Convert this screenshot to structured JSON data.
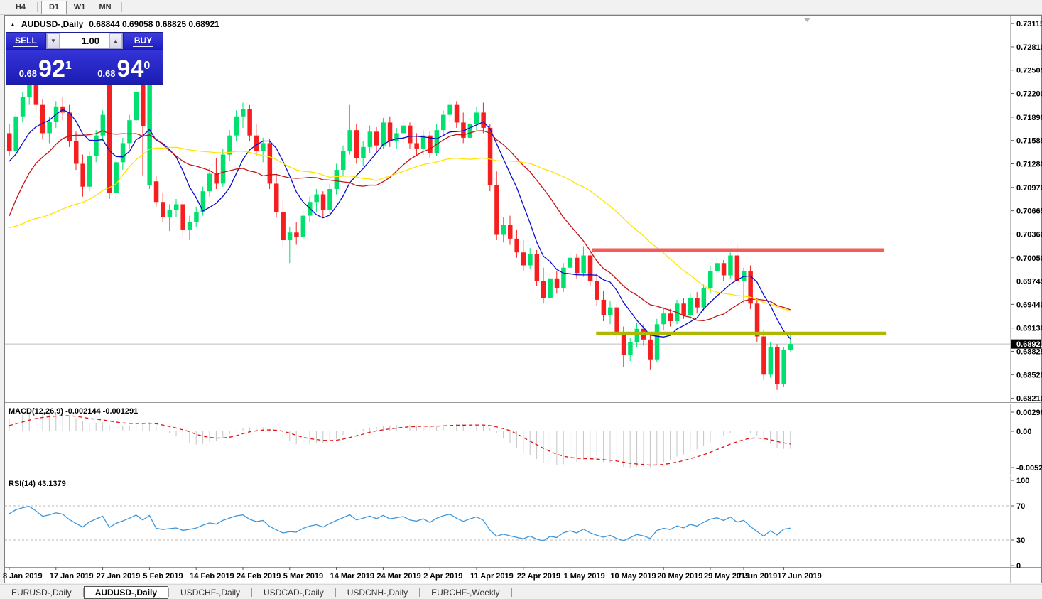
{
  "toolbar": {
    "periods": [
      "H4",
      "D1",
      "W1",
      "MN"
    ],
    "active_period": "D1"
  },
  "chart_window": {
    "title": {
      "collapse_icon": "▲",
      "symbol": "AUDUSD-,Daily",
      "ohlc": "0.68844 0.69058 0.68825 0.68921"
    },
    "trade_panel": {
      "sell_label": "SELL",
      "buy_label": "BUY",
      "volume": "1.00",
      "spin_down_icon": "▼",
      "spin_up_icon": "▲",
      "sell_price": {
        "base": "0.68",
        "big": "92",
        "sup": "1"
      },
      "buy_price": {
        "base": "0.68",
        "big": "94",
        "sup": "0"
      }
    }
  },
  "tabs": {
    "items": [
      "EURUSD-,Daily",
      "AUDUSD-,Daily",
      "USDCHF-,Daily",
      "USDCAD-,Daily",
      "USDCNH-,Daily",
      "EURCHF-,Weekly"
    ],
    "active_index": 1
  },
  "chart_data": {
    "type": "candlestick",
    "symbol": "AUDUSD",
    "timeframe": "Daily",
    "ylim": [
      0.6816,
      0.732
    ],
    "grid": false,
    "current_price": "0.68921",
    "y_ticks": [
      "0.73115",
      "0.72810",
      "0.72505",
      "0.72200",
      "0.71890",
      "0.71585",
      "0.71280",
      "0.70970",
      "0.70665",
      "0.70360",
      "0.70050",
      "0.69745",
      "0.69440",
      "0.69130",
      "0.68825",
      "0.68520",
      "0.68210"
    ],
    "x_labels": [
      {
        "i": 0,
        "label": "8 Jan 2019"
      },
      {
        "i": 7,
        "label": "17 Jan 2019"
      },
      {
        "i": 14,
        "label": "27 Jan 2019"
      },
      {
        "i": 21,
        "label": "5 Feb 2019"
      },
      {
        "i": 28,
        "label": "14 Feb 2019"
      },
      {
        "i": 35,
        "label": "24 Feb 2019"
      },
      {
        "i": 42,
        "label": "5 Mar 2019"
      },
      {
        "i": 49,
        "label": "14 Mar 2019"
      },
      {
        "i": 56,
        "label": "24 Mar 2019"
      },
      {
        "i": 63,
        "label": "2 Apr 2019"
      },
      {
        "i": 70,
        "label": "11 Apr 2019"
      },
      {
        "i": 77,
        "label": "22 Apr 2019"
      },
      {
        "i": 84,
        "label": "1 May 2019"
      },
      {
        "i": 91,
        "label": "10 May 2019"
      },
      {
        "i": 98,
        "label": "20 May 2019"
      },
      {
        "i": 105,
        "label": "29 May 2019"
      },
      {
        "i": 110,
        "label": "7 Jun 2019"
      },
      {
        "i": 116,
        "label": "17 Jun 2019"
      }
    ],
    "colors": {
      "bull": "#00E06E",
      "bear": "#F51F1F",
      "background": "#FFFFFF",
      "current_price_line": "#BDBDBD",
      "axis_text": "#000000"
    },
    "moving_averages": [
      {
        "period": 8,
        "color": "#0A0AC8"
      },
      {
        "period": 17,
        "color": "#C41414"
      },
      {
        "period": 34,
        "color": "#FFE400"
      }
    ],
    "levels": [
      {
        "price": 0.7015,
        "color": "#F45B5B",
        "from_i": 87.3,
        "to_i": 131.0,
        "thickness": 5
      },
      {
        "price": 0.6906,
        "color": "#AFB800",
        "from_i": 87.9,
        "to_i": 131.4,
        "thickness": 5
      }
    ],
    "macd": {
      "label": "MACD(12,26,9)",
      "values": "-0.002144 -0.001291",
      "fast": 12,
      "slow": 26,
      "signal": 9,
      "scale_ticks": [
        "0.002984",
        "0.00",
        "-0.005256"
      ],
      "histogram_color": "#C4C4C4",
      "signal_color": "#E01010"
    },
    "rsi": {
      "label": "RSI(14)",
      "value": "43.1379",
      "period": 14,
      "scale_ticks": [
        "100",
        "70",
        "30",
        "0"
      ],
      "level_lines": [
        70,
        30
      ],
      "line_color": "#3C96DC"
    },
    "shift_marker_i": 119.5,
    "prehistory_closes": [
      0.7135,
      0.7128,
      0.714,
      0.7132,
      0.712,
      0.7112,
      0.7125,
      0.7118,
      0.7105,
      0.7098,
      0.711,
      0.7102,
      0.7088,
      0.7075,
      0.706,
      0.7045,
      0.703,
      0.7015,
      0.7,
      0.699,
      0.6975,
      0.696,
      0.698,
      0.674,
      0.683,
      0.69,
      0.695,
      0.699,
      0.703,
      0.706,
      0.704,
      0.707,
      0.7095,
      0.7115,
      0.71,
      0.7125,
      0.714,
      0.7132,
      0.715,
      0.7142
    ],
    "candles": [
      [
        0.7168,
        0.718,
        0.7138,
        0.7145
      ],
      [
        0.7145,
        0.7196,
        0.714,
        0.719
      ],
      [
        0.719,
        0.7222,
        0.7182,
        0.7215
      ],
      [
        0.7215,
        0.724,
        0.7205,
        0.7232
      ],
      [
        0.7232,
        0.7236,
        0.7196,
        0.7205
      ],
      [
        0.7205,
        0.7212,
        0.716,
        0.7168
      ],
      [
        0.7168,
        0.719,
        0.7155,
        0.7183
      ],
      [
        0.7183,
        0.721,
        0.7175,
        0.7203
      ],
      [
        0.7203,
        0.7215,
        0.7185,
        0.7195
      ],
      [
        0.7195,
        0.7205,
        0.715,
        0.7158
      ],
      [
        0.7158,
        0.717,
        0.712,
        0.7128
      ],
      [
        0.7128,
        0.714,
        0.7085,
        0.7098
      ],
      [
        0.7098,
        0.7145,
        0.7092,
        0.7138
      ],
      [
        0.7138,
        0.7172,
        0.713,
        0.7165
      ],
      [
        0.7165,
        0.7198,
        0.7158,
        0.7192
      ],
      [
        0.7233,
        0.724,
        0.7082,
        0.709
      ],
      [
        0.709,
        0.7138,
        0.7082,
        0.713
      ],
      [
        0.713,
        0.7162,
        0.712,
        0.7155
      ],
      [
        0.7155,
        0.7192,
        0.7148,
        0.7185
      ],
      [
        0.7185,
        0.7228,
        0.718,
        0.7222
      ],
      [
        0.7235,
        0.7238,
        0.7113,
        0.7177
      ],
      [
        0.71,
        0.7235,
        0.7095,
        0.7232
      ],
      [
        0.7105,
        0.7112,
        0.7072,
        0.7078
      ],
      [
        0.7078,
        0.709,
        0.7052,
        0.7058
      ],
      [
        0.7058,
        0.7075,
        0.704,
        0.7068
      ],
      [
        0.7068,
        0.7082,
        0.7058,
        0.7075
      ],
      [
        0.7075,
        0.708,
        0.7032,
        0.7042
      ],
      [
        0.7042,
        0.706,
        0.7028,
        0.7052
      ],
      [
        0.7052,
        0.7072,
        0.7045,
        0.7065
      ],
      [
        0.7065,
        0.7098,
        0.706,
        0.7092
      ],
      [
        0.7092,
        0.7122,
        0.7085,
        0.7115
      ],
      [
        0.7115,
        0.7135,
        0.7095,
        0.7102
      ],
      [
        0.7102,
        0.7148,
        0.7098,
        0.714
      ],
      [
        0.714,
        0.7172,
        0.7132,
        0.7165
      ],
      [
        0.7165,
        0.7198,
        0.7158,
        0.719
      ],
      [
        0.719,
        0.7208,
        0.7175,
        0.72
      ],
      [
        0.72,
        0.7205,
        0.7158,
        0.7165
      ],
      [
        0.7165,
        0.718,
        0.7138,
        0.7145
      ],
      [
        0.7145,
        0.7162,
        0.713,
        0.7155
      ],
      [
        0.7155,
        0.716,
        0.7095,
        0.7102
      ],
      [
        0.7102,
        0.7115,
        0.7058,
        0.7065
      ],
      [
        0.7065,
        0.708,
        0.702,
        0.7028
      ],
      [
        0.7028,
        0.7045,
        0.6998,
        0.7038
      ],
      [
        0.7038,
        0.7052,
        0.7022,
        0.7032
      ],
      [
        0.7032,
        0.7068,
        0.7028,
        0.706
      ],
      [
        0.706,
        0.7085,
        0.7052,
        0.7078
      ],
      [
        0.7078,
        0.7095,
        0.7065,
        0.7088
      ],
      [
        0.7088,
        0.7092,
        0.7058,
        0.7068
      ],
      [
        0.7068,
        0.7102,
        0.7062,
        0.7095
      ],
      [
        0.7095,
        0.7128,
        0.7088,
        0.712
      ],
      [
        0.712,
        0.7152,
        0.7112,
        0.7145
      ],
      [
        0.7145,
        0.7205,
        0.714,
        0.7172
      ],
      [
        0.7172,
        0.718,
        0.7128,
        0.7135
      ],
      [
        0.7135,
        0.7158,
        0.7125,
        0.715
      ],
      [
        0.715,
        0.7178,
        0.7142,
        0.717
      ],
      [
        0.717,
        0.7176,
        0.7145,
        0.7152
      ],
      [
        0.7152,
        0.7188,
        0.7148,
        0.7182
      ],
      [
        0.7182,
        0.719,
        0.715,
        0.7158
      ],
      [
        0.7158,
        0.7175,
        0.7148,
        0.7168
      ],
      [
        0.7168,
        0.7185,
        0.7155,
        0.7178
      ],
      [
        0.7178,
        0.7182,
        0.7148,
        0.7155
      ],
      [
        0.7155,
        0.7168,
        0.7138,
        0.7148
      ],
      [
        0.7148,
        0.7172,
        0.714,
        0.7165
      ],
      [
        0.7165,
        0.717,
        0.7135,
        0.7142
      ],
      [
        0.7142,
        0.718,
        0.7138,
        0.7172
      ],
      [
        0.7172,
        0.7198,
        0.7165,
        0.7192
      ],
      [
        0.7192,
        0.7212,
        0.7182,
        0.7205
      ],
      [
        0.7205,
        0.721,
        0.7175,
        0.7182
      ],
      [
        0.7182,
        0.7195,
        0.7155,
        0.7162
      ],
      [
        0.7162,
        0.7188,
        0.7158,
        0.718
      ],
      [
        0.718,
        0.7202,
        0.7172,
        0.7195
      ],
      [
        0.7195,
        0.7208,
        0.7168,
        0.7175
      ],
      [
        0.7175,
        0.718,
        0.7092,
        0.71
      ],
      [
        0.71,
        0.7118,
        0.7028,
        0.7035
      ],
      [
        0.7035,
        0.7058,
        0.7025,
        0.7048
      ],
      [
        0.7048,
        0.706,
        0.7022,
        0.703
      ],
      [
        0.703,
        0.7042,
        0.7005,
        0.7012
      ],
      [
        0.7012,
        0.7028,
        0.6988,
        0.6995
      ],
      [
        0.6995,
        0.7018,
        0.699,
        0.701
      ],
      [
        0.701,
        0.7015,
        0.6968,
        0.6975
      ],
      [
        0.6975,
        0.6992,
        0.6945,
        0.6952
      ],
      [
        0.6952,
        0.6985,
        0.6948,
        0.6978
      ],
      [
        0.6978,
        0.6988,
        0.6958,
        0.6965
      ],
      [
        0.6965,
        0.6998,
        0.696,
        0.6992
      ],
      [
        0.6992,
        0.7012,
        0.6985,
        0.7005
      ],
      [
        0.7005,
        0.701,
        0.6978,
        0.6985
      ],
      [
        0.6985,
        0.702,
        0.698,
        0.7008
      ],
      [
        0.7008,
        0.7012,
        0.6968,
        0.6975
      ],
      [
        0.6975,
        0.6985,
        0.6942,
        0.695
      ],
      [
        0.695,
        0.6962,
        0.6922,
        0.693
      ],
      [
        0.693,
        0.6948,
        0.6918,
        0.694
      ],
      [
        0.694,
        0.6945,
        0.6898,
        0.6905
      ],
      [
        0.6905,
        0.6915,
        0.6862,
        0.6878
      ],
      [
        0.6878,
        0.69,
        0.687,
        0.6895
      ],
      [
        0.6895,
        0.692,
        0.6888,
        0.6912
      ],
      [
        0.6912,
        0.6918,
        0.689,
        0.6898
      ],
      [
        0.6898,
        0.6905,
        0.6858,
        0.6872
      ],
      [
        0.6872,
        0.6925,
        0.6868,
        0.6918
      ],
      [
        0.6918,
        0.694,
        0.691,
        0.6932
      ],
      [
        0.6932,
        0.6938,
        0.6915,
        0.6922
      ],
      [
        0.6922,
        0.695,
        0.6918,
        0.6945
      ],
      [
        0.6945,
        0.6952,
        0.6925,
        0.693
      ],
      [
        0.693,
        0.6958,
        0.6925,
        0.6952
      ],
      [
        0.6952,
        0.696,
        0.6932,
        0.694
      ],
      [
        0.694,
        0.697,
        0.6935,
        0.6965
      ],
      [
        0.6965,
        0.6995,
        0.6958,
        0.6988
      ],
      [
        0.6988,
        0.7005,
        0.698,
        0.6998
      ],
      [
        0.6998,
        0.7002,
        0.6975,
        0.6982
      ],
      [
        0.6982,
        0.7012,
        0.6978,
        0.7008
      ],
      [
        0.7008,
        0.7022,
        0.6968,
        0.6975
      ],
      [
        0.6975,
        0.6992,
        0.6945,
        0.6988
      ],
      [
        0.6988,
        0.6995,
        0.6938,
        0.6945
      ],
      [
        0.6945,
        0.6952,
        0.6895,
        0.6902
      ],
      [
        0.6902,
        0.691,
        0.6845,
        0.6852
      ],
      [
        0.6852,
        0.6895,
        0.6848,
        0.6888
      ],
      [
        0.6888,
        0.6892,
        0.6832,
        0.684
      ],
      [
        0.684,
        0.6888,
        0.6836,
        0.6884
      ],
      [
        0.68844,
        0.69058,
        0.68825,
        0.68921
      ]
    ]
  }
}
